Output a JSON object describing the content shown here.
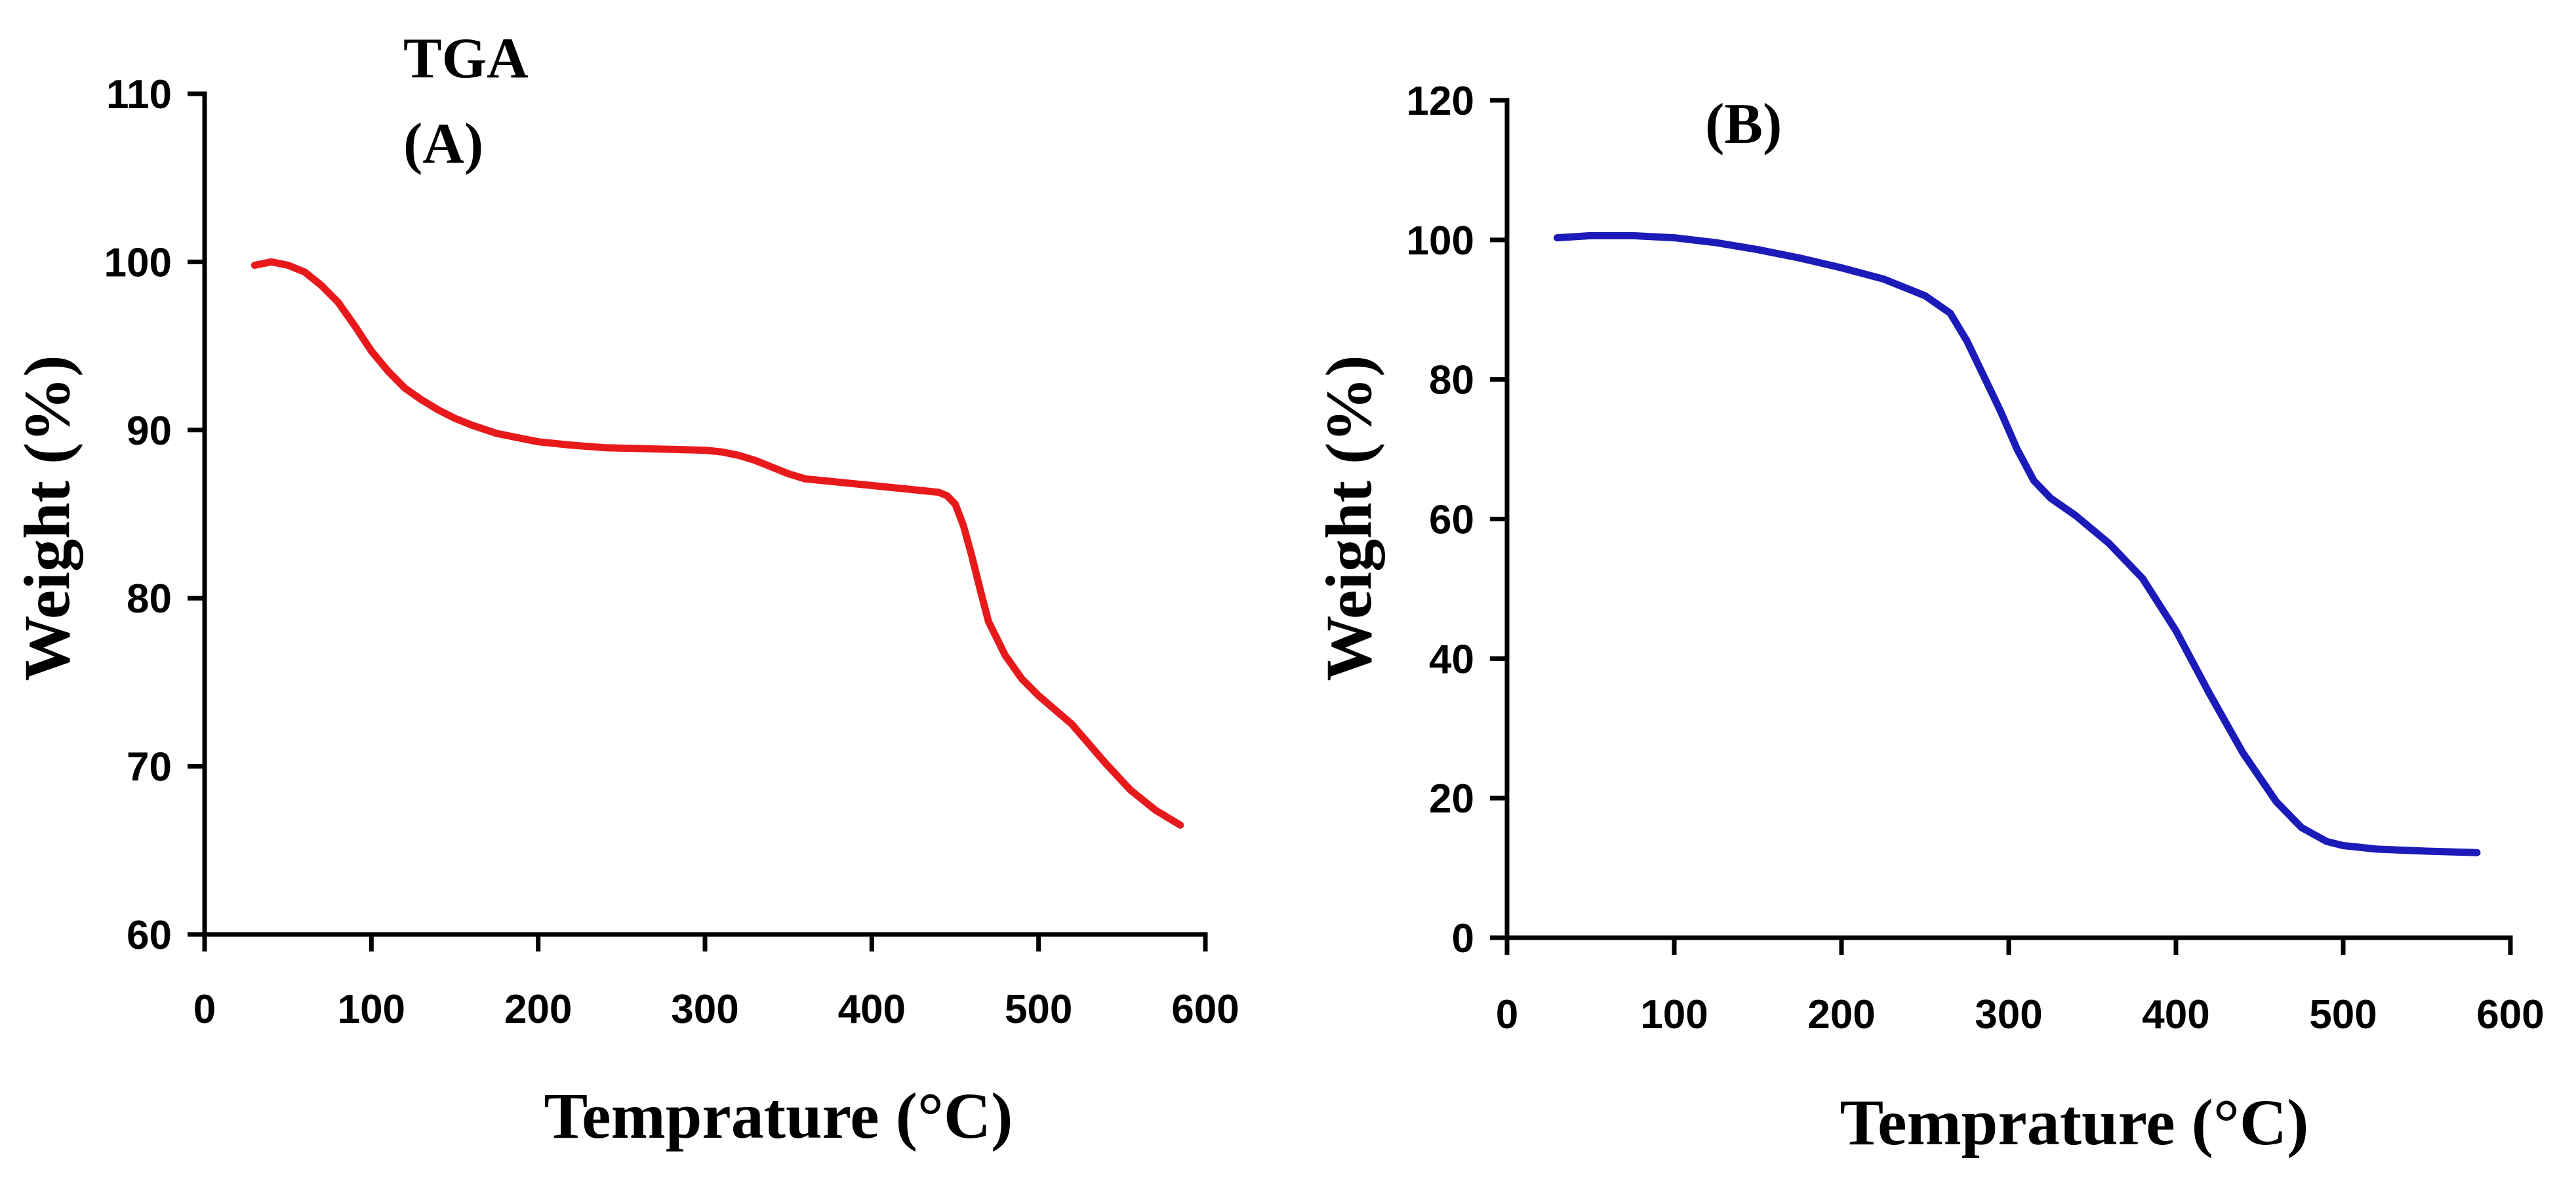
{
  "chart_data": [
    {
      "type": "line",
      "title": "TGA",
      "panel_label": "(A)",
      "xlabel": "Temprature (°C)",
      "ylabel": "Weight (%)",
      "xlim": [
        0,
        600
      ],
      "ylim": [
        60,
        110
      ],
      "xticks": [
        0,
        100,
        200,
        300,
        400,
        500,
        600
      ],
      "yticks": [
        60,
        70,
        80,
        90,
        100,
        110
      ],
      "grid": false,
      "series": [
        {
          "color": "#e8191b",
          "x": [
            30,
            40,
            50,
            60,
            70,
            80,
            90,
            100,
            110,
            120,
            130,
            140,
            150,
            160,
            175,
            190,
            200,
            220,
            240,
            260,
            280,
            300,
            310,
            320,
            330,
            340,
            350,
            360,
            380,
            400,
            420,
            430,
            440,
            445,
            450,
            455,
            460,
            465,
            470,
            480,
            490,
            500,
            520,
            540,
            555,
            570,
            585
          ],
          "y": [
            99.8,
            100.0,
            99.8,
            99.4,
            98.6,
            97.6,
            96.2,
            94.7,
            93.5,
            92.5,
            91.8,
            91.2,
            90.7,
            90.3,
            89.8,
            89.5,
            89.3,
            89.1,
            88.95,
            88.9,
            88.85,
            88.8,
            88.7,
            88.5,
            88.2,
            87.8,
            87.4,
            87.1,
            86.9,
            86.7,
            86.5,
            86.4,
            86.3,
            86.1,
            85.6,
            84.3,
            82.5,
            80.5,
            78.6,
            76.6,
            75.2,
            74.2,
            72.5,
            70.2,
            68.6,
            67.4,
            66.5
          ]
        }
      ]
    },
    {
      "type": "line",
      "panel_label": "(B)",
      "xlabel": "Temprature (°C)",
      "ylabel": "Weight (%)",
      "xlim": [
        0,
        600
      ],
      "ylim": [
        0,
        120
      ],
      "xticks": [
        0,
        100,
        200,
        300,
        400,
        500,
        600
      ],
      "yticks": [
        0,
        20,
        40,
        60,
        80,
        100,
        120
      ],
      "grid": false,
      "series": [
        {
          "color": "#1c1ab8",
          "x": [
            30,
            50,
            75,
            100,
            125,
            150,
            175,
            200,
            225,
            250,
            265,
            275,
            285,
            295,
            305,
            315,
            325,
            340,
            360,
            380,
            400,
            420,
            440,
            460,
            475,
            490,
            500,
            520,
            550,
            580
          ],
          "y": [
            100.3,
            100.6,
            100.6,
            100.3,
            99.6,
            98.6,
            97.4,
            96.0,
            94.4,
            92.0,
            89.5,
            85.5,
            80.5,
            75.5,
            70.0,
            65.5,
            63.0,
            60.5,
            56.5,
            51.5,
            44.0,
            35.0,
            26.5,
            19.5,
            15.8,
            13.8,
            13.2,
            12.7,
            12.4,
            12.2
          ]
        }
      ]
    }
  ]
}
